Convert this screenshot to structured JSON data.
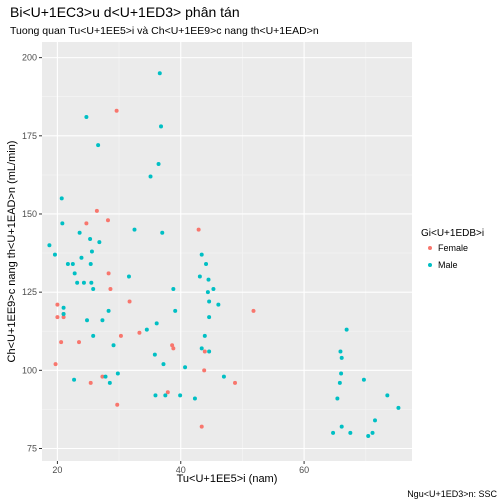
{
  "chart_data": {
    "type": "scatter",
    "title": "Bi<U+1EC3>u d<U+1ED3> phân tán",
    "subtitle": "Tuong quan Tu<U+1EE5>i và Ch<U+1EE9>c nang th<U+1EAD>n",
    "xlabel": "Tu<U+1EE5>i (nam)",
    "ylabel": "Ch<U+1EE9>c nang th<U+1EAD>n (mL/min)",
    "caption": "Ngu<U+1ED3>n: SSC",
    "xlim": [
      17.5,
      77.5
    ],
    "ylim": [
      71,
      205
    ],
    "x_ticks": [
      20,
      40,
      60
    ],
    "y_ticks": [
      75,
      100,
      125,
      150,
      175,
      200
    ],
    "grid": true,
    "legend": {
      "title": "Gi<U+1EDB>i",
      "position": "right",
      "entries": [
        "Female",
        "Male"
      ]
    },
    "series": [
      {
        "name": "Female",
        "color": "#F8766D",
        "points": [
          [
            20,
            121
          ],
          [
            20,
            117
          ],
          [
            19.7,
            102
          ],
          [
            20.6,
            109
          ],
          [
            21,
            117
          ],
          [
            21,
            118
          ],
          [
            23.5,
            109
          ],
          [
            24.7,
            147
          ],
          [
            25.4,
            96
          ],
          [
            26.4,
            151
          ],
          [
            27.3,
            98
          ],
          [
            28.2,
            148
          ],
          [
            28.3,
            131
          ],
          [
            28.6,
            126
          ],
          [
            29.6,
            183
          ],
          [
            29.7,
            89
          ],
          [
            30.3,
            111
          ],
          [
            31.7,
            122
          ],
          [
            33.3,
            112
          ],
          [
            37.9,
            93
          ],
          [
            38.6,
            108
          ],
          [
            38.8,
            107
          ],
          [
            42.9,
            145
          ],
          [
            43.4,
            82
          ],
          [
            43.8,
            100
          ],
          [
            43.9,
            106
          ],
          [
            48.8,
            96
          ],
          [
            51.8,
            119
          ]
        ]
      },
      {
        "name": "Male",
        "color": "#00BFC4",
        "points": [
          [
            18.7,
            140
          ],
          [
            19.6,
            137
          ],
          [
            20.7,
            155
          ],
          [
            20.8,
            147
          ],
          [
            21,
            118
          ],
          [
            21,
            120
          ],
          [
            21.7,
            134
          ],
          [
            22.5,
            134
          ],
          [
            22.7,
            97
          ],
          [
            22.8,
            131
          ],
          [
            23.2,
            128
          ],
          [
            23.6,
            144
          ],
          [
            23.9,
            136
          ],
          [
            24.3,
            128
          ],
          [
            24.7,
            181
          ],
          [
            24.8,
            116
          ],
          [
            25.3,
            142
          ],
          [
            25.4,
            134
          ],
          [
            25.5,
            128
          ],
          [
            25.6,
            138
          ],
          [
            25.8,
            111
          ],
          [
            25.8,
            126
          ],
          [
            26.6,
            172
          ],
          [
            26.8,
            141
          ],
          [
            27.3,
            116
          ],
          [
            27.8,
            98
          ],
          [
            28.3,
            119
          ],
          [
            28.5,
            96
          ],
          [
            29.1,
            108
          ],
          [
            29.8,
            99
          ],
          [
            31.6,
            130
          ],
          [
            32.5,
            145
          ],
          [
            34.5,
            113
          ],
          [
            35.1,
            162
          ],
          [
            35.8,
            105
          ],
          [
            35.9,
            92
          ],
          [
            36.1,
            115
          ],
          [
            36.4,
            166
          ],
          [
            36.6,
            195
          ],
          [
            36.8,
            178
          ],
          [
            37,
            144
          ],
          [
            37.2,
            102
          ],
          [
            37.5,
            92
          ],
          [
            38.8,
            126
          ],
          [
            39.1,
            119
          ],
          [
            39.9,
            92
          ],
          [
            40.7,
            101
          ],
          [
            42.3,
            91
          ],
          [
            43.1,
            130
          ],
          [
            43.4,
            107
          ],
          [
            43.4,
            137
          ],
          [
            43.9,
            111
          ],
          [
            44.1,
            134
          ],
          [
            44.4,
            125
          ],
          [
            44.5,
            129
          ],
          [
            44.6,
            106
          ],
          [
            44.6,
            122
          ],
          [
            44.6,
            117
          ],
          [
            45.3,
            126
          ],
          [
            46.1,
            121
          ],
          [
            47,
            98
          ],
          [
            64.7,
            80
          ],
          [
            65.4,
            91
          ],
          [
            65.8,
            96
          ],
          [
            65.9,
            106
          ],
          [
            66,
            99
          ],
          [
            66.1,
            82
          ],
          [
            66.1,
            104
          ],
          [
            66.9,
            113
          ],
          [
            67.5,
            80
          ],
          [
            69.7,
            97
          ],
          [
            70.4,
            79
          ],
          [
            71.1,
            80
          ],
          [
            71.5,
            84
          ],
          [
            73.5,
            92
          ],
          [
            75.3,
            88
          ]
        ]
      }
    ]
  }
}
